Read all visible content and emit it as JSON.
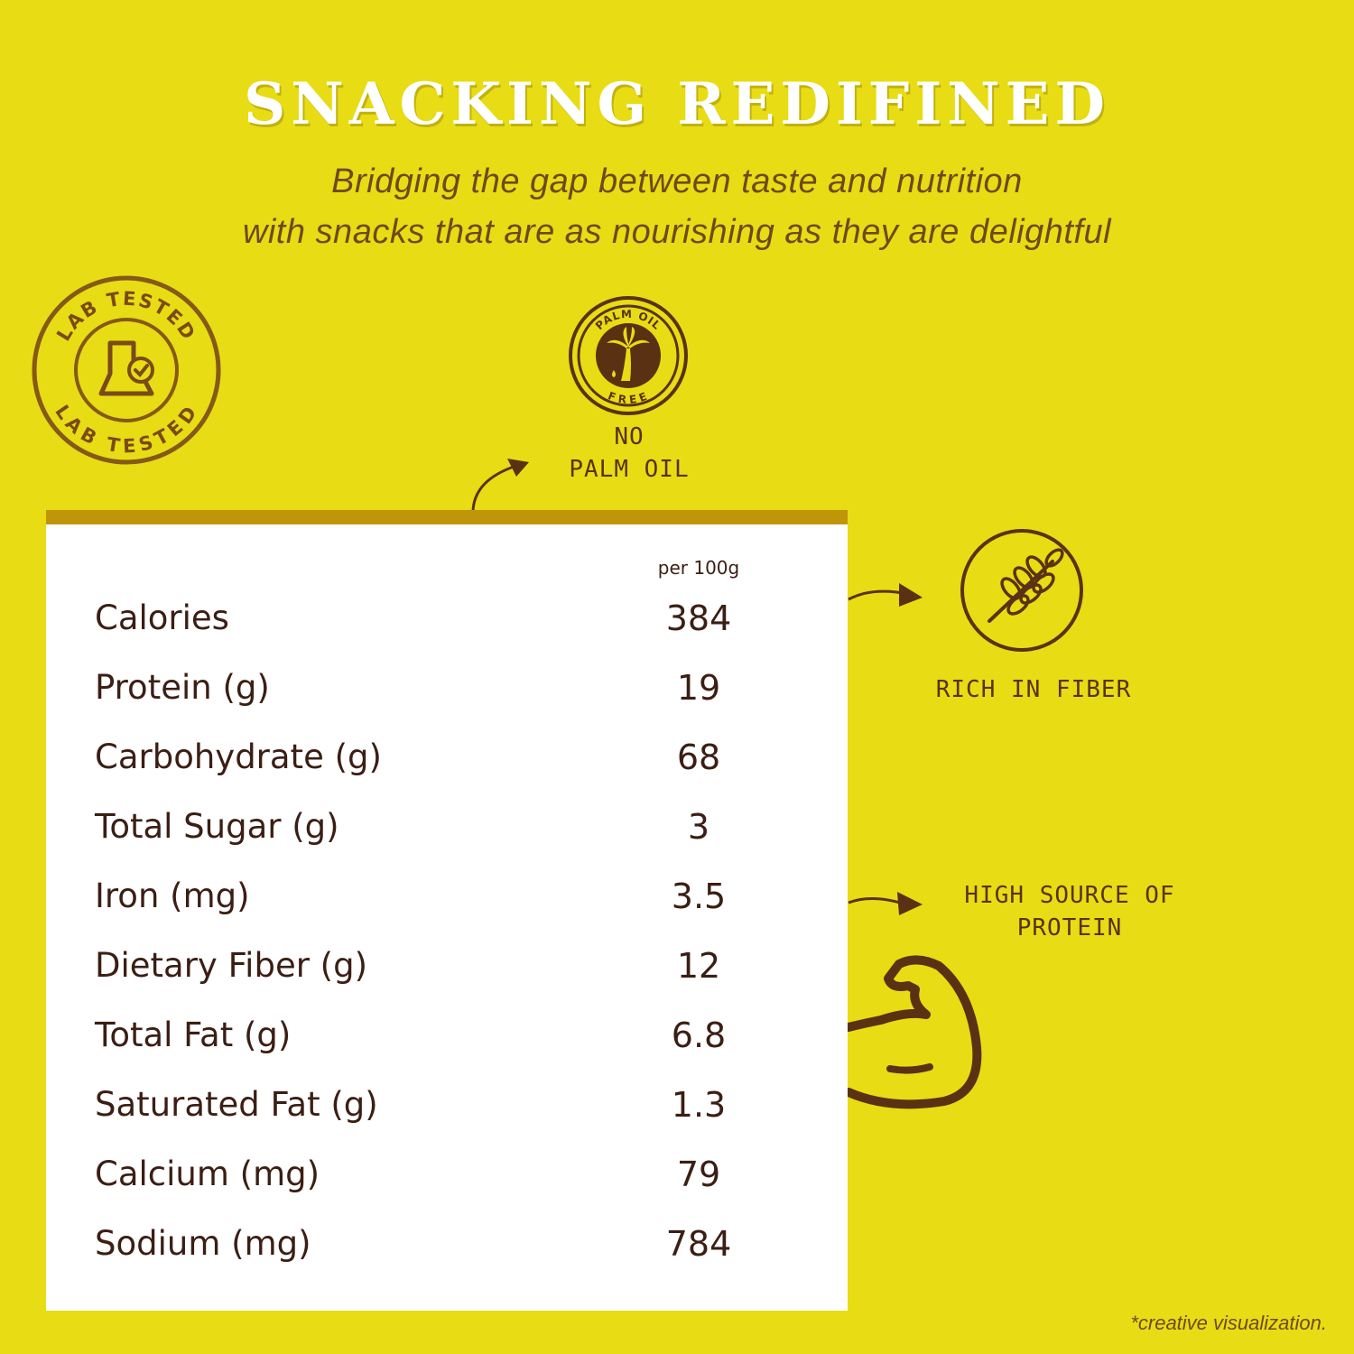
{
  "header": {
    "title": "SNACKING REDIFINED",
    "subtitle_line1": "Bridging the gap between taste and nutrition",
    "subtitle_line2": "with snacks that are as nourishing as they are delightful"
  },
  "badges": {
    "lab_tested": {
      "icon": "lab-flask-check-icon",
      "text_top": "LAB TESTED",
      "text_bottom": "LAB TESTED"
    },
    "palm_oil_free": {
      "icon": "palm-tree-icon",
      "text_top": "PALM OIL",
      "text_bottom": "FREE"
    },
    "fiber": {
      "icon": "wheat-icon"
    },
    "protein": {
      "icon": "flexed-arm-icon"
    }
  },
  "features": {
    "no_palm_oil_line1": "NO",
    "no_palm_oil_line2": "PALM OIL",
    "rich_in_fiber": "RICH IN FIBER",
    "high_protein_line1": "HIGH SOURCE OF",
    "high_protein_line2": "PROTEIN"
  },
  "nutrition": {
    "per_label": "per 100g",
    "rows": [
      {
        "name": "Calories",
        "value": "384"
      },
      {
        "name": "Protein (g)",
        "value": "19"
      },
      {
        "name": "Carbohydrate (g)",
        "value": "68"
      },
      {
        "name": "Total Sugar (g)",
        "value": "3"
      },
      {
        "name": "Iron (mg)",
        "value": "3.5"
      },
      {
        "name": "Dietary Fiber (g)",
        "value": "12"
      },
      {
        "name": "Total Fat (g)",
        "value": "6.8"
      },
      {
        "name": "Saturated Fat (g)",
        "value": "1.3"
      },
      {
        "name": "Calcium (mg)",
        "value": "79"
      },
      {
        "name": "Sodium (mg)",
        "value": "784"
      }
    ]
  },
  "footnote": "*creative visualization.",
  "colors": {
    "background": "#E8DC14",
    "brown": "#5a3213",
    "table_bar": "#C19509",
    "white": "#ffffff"
  }
}
